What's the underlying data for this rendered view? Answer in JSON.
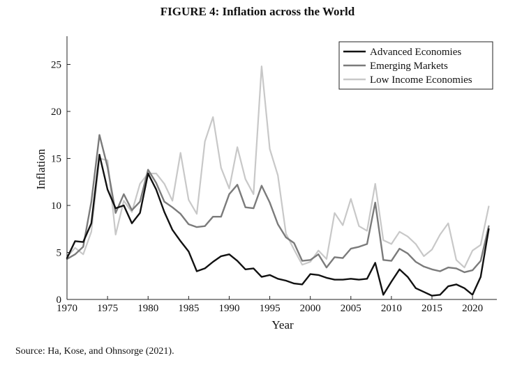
{
  "figure_title": "FIGURE 4: Inflation across the World",
  "source_note": "Source: Ha, Kose, and Ohnsorge (2021).",
  "chart_data": {
    "type": "line",
    "title": "",
    "xlabel": "Year",
    "ylabel": "Inflation",
    "xlim": [
      1970,
      2023
    ],
    "ylim": [
      0,
      28
    ],
    "xticks": [
      1970,
      1975,
      1980,
      1985,
      1990,
      1995,
      2000,
      2005,
      2010,
      2015,
      2020
    ],
    "yticks": [
      0,
      5,
      10,
      15,
      20,
      25
    ],
    "grid": false,
    "legend_position": "top-right",
    "x": [
      1970,
      1971,
      1972,
      1973,
      1974,
      1975,
      1976,
      1977,
      1978,
      1979,
      1980,
      1981,
      1982,
      1983,
      1984,
      1985,
      1986,
      1987,
      1988,
      1989,
      1990,
      1991,
      1992,
      1993,
      1994,
      1995,
      1996,
      1997,
      1998,
      1999,
      2000,
      2001,
      2002,
      2003,
      2004,
      2005,
      2006,
      2007,
      2008,
      2009,
      2010,
      2011,
      2012,
      2013,
      2014,
      2015,
      2016,
      2017,
      2018,
      2019,
      2020,
      2021,
      2022
    ],
    "series": [
      {
        "name": "Advanced Economies",
        "color": "#111111",
        "values": [
          4.4,
          6.2,
          6.1,
          8.1,
          15.4,
          11.7,
          9.7,
          10.0,
          8.1,
          9.2,
          13.4,
          11.7,
          9.3,
          7.4,
          6.2,
          5.1,
          3.0,
          3.3,
          4.0,
          4.6,
          4.8,
          4.1,
          3.2,
          3.3,
          2.4,
          2.6,
          2.2,
          2.0,
          1.7,
          1.6,
          2.7,
          2.6,
          2.3,
          2.1,
          2.1,
          2.2,
          2.1,
          2.2,
          3.9,
          0.5,
          1.9,
          3.2,
          2.4,
          1.2,
          0.8,
          0.4,
          0.5,
          1.4,
          1.6,
          1.2,
          0.5,
          2.4,
          7.5
        ]
      },
      {
        "name": "Emerging Markets",
        "color": "#7b7b7b",
        "values": [
          4.3,
          4.8,
          5.6,
          10.4,
          17.5,
          14.1,
          9.2,
          11.2,
          9.5,
          10.4,
          13.8,
          12.4,
          10.4,
          9.8,
          9.1,
          8.0,
          7.7,
          7.8,
          8.8,
          8.8,
          11.2,
          12.2,
          9.8,
          9.7,
          12.1,
          10.3,
          8.0,
          6.6,
          6.0,
          4.1,
          4.2,
          4.8,
          3.4,
          4.5,
          4.4,
          5.4,
          5.6,
          5.9,
          10.3,
          4.2,
          4.1,
          5.4,
          4.9,
          4.0,
          3.5,
          3.2,
          3.0,
          3.4,
          3.3,
          2.9,
          3.1,
          4.1,
          7.8
        ]
      },
      {
        "name": "Low Income Economies",
        "color": "#c8c8c8",
        "values": [
          4.5,
          5.5,
          4.8,
          7.2,
          15.0,
          14.8,
          6.9,
          10.5,
          9.3,
          12.3,
          13.4,
          13.4,
          12.3,
          10.5,
          15.6,
          10.6,
          9.1,
          16.8,
          19.4,
          14.0,
          11.8,
          16.2,
          12.8,
          11.2,
          24.8,
          16.0,
          13.2,
          7.0,
          5.3,
          3.7,
          4.0,
          5.2,
          4.3,
          9.2,
          7.9,
          10.7,
          7.8,
          7.3,
          12.3,
          6.3,
          5.9,
          7.2,
          6.7,
          5.9,
          4.6,
          5.3,
          6.9,
          8.1,
          4.2,
          3.4,
          5.2,
          5.8,
          9.9
        ]
      }
    ]
  }
}
